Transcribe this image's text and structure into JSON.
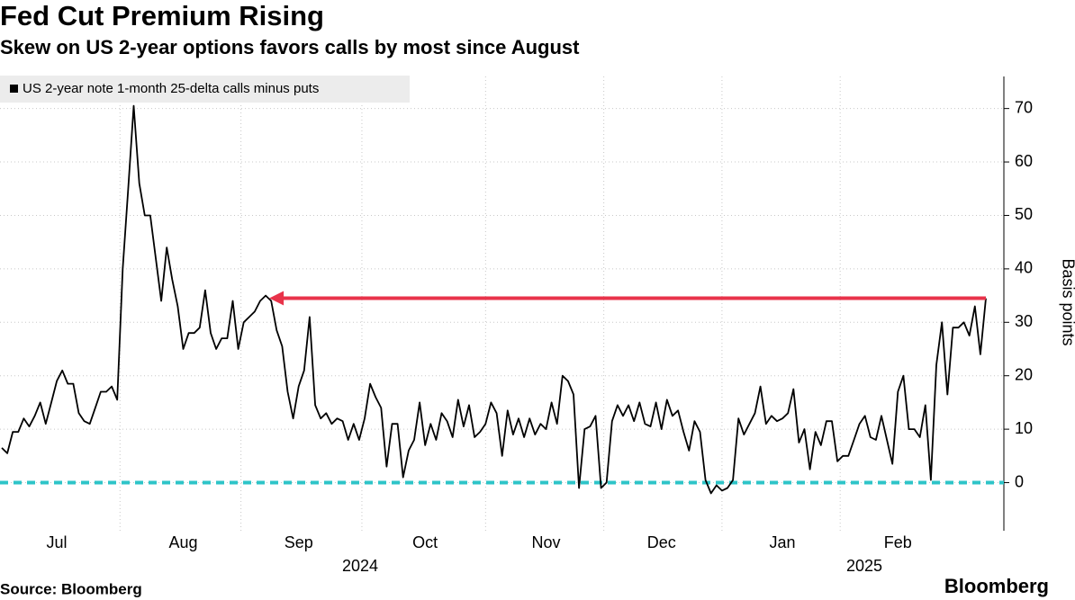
{
  "chart_data": {
    "type": "line",
    "title": "Fed Cut Premium Rising",
    "subtitle": "Skew on US 2-year options favors calls by most since August",
    "y_label": "Basis points",
    "source": "Source: Bloomberg",
    "brand": "Bloomberg",
    "categories": [
      null,
      null,
      null,
      null,
      null,
      null,
      null,
      null,
      null,
      null,
      "Jul",
      null,
      null,
      null,
      null,
      null,
      null,
      null,
      null,
      null,
      null,
      null,
      null,
      null,
      null,
      null,
      null,
      null,
      null,
      null,
      null,
      null,
      null,
      "Aug",
      null,
      null,
      null,
      null,
      null,
      null,
      null,
      null,
      null,
      null,
      null,
      null,
      null,
      null,
      null,
      null,
      null,
      null,
      null,
      null,
      "Sep",
      null,
      null,
      null,
      null,
      null,
      null,
      null,
      null,
      null,
      null,
      null,
      null,
      null,
      null,
      null,
      null,
      null,
      null,
      null,
      null,
      null,
      null,
      "Oct",
      null,
      null,
      null,
      null,
      null,
      null,
      null,
      null,
      null,
      null,
      null,
      null,
      null,
      null,
      null,
      null,
      null,
      null,
      null,
      null,
      null,
      "Nov",
      null,
      null,
      null,
      null,
      null,
      null,
      null,
      null,
      null,
      null,
      null,
      null,
      null,
      null,
      null,
      null,
      null,
      null,
      null,
      null,
      "Dec",
      null,
      null,
      null,
      null,
      null,
      null,
      null,
      null,
      null,
      null,
      null,
      null,
      null,
      null,
      null,
      null,
      null,
      null,
      null,
      null,
      null,
      "Jan",
      null,
      null,
      null,
      null,
      null,
      null,
      null,
      null,
      null,
      null,
      null,
      null,
      null,
      null,
      null,
      null,
      null,
      null,
      null,
      null,
      "Feb",
      null,
      null,
      null,
      null,
      null,
      null,
      null,
      null,
      null,
      null,
      null,
      null,
      null,
      null,
      null,
      null
    ],
    "year_labels": [
      "2024",
      "2025"
    ],
    "series": [
      {
        "name": "US 2-year note 1-month 25-delta calls minus puts",
        "color": "#000000",
        "values": [
          6.5,
          5.5,
          9.5,
          9.5,
          12,
          10.5,
          12.5,
          15,
          11,
          15,
          19,
          21,
          18.5,
          18.5,
          13,
          11.5,
          11,
          14,
          17,
          17,
          18,
          15.5,
          40,
          55,
          70.5,
          56,
          50,
          50,
          42,
          34,
          44,
          38,
          33,
          25,
          28,
          28,
          29,
          36,
          28,
          25,
          27,
          27,
          34,
          25,
          30,
          31,
          32,
          34,
          35,
          34,
          28.5,
          25.5,
          17,
          12,
          18,
          21,
          31,
          14.5,
          12,
          13,
          11,
          12,
          11.5,
          8,
          11,
          8,
          12,
          18.5,
          16,
          14,
          3,
          11,
          11,
          1,
          6,
          8,
          15,
          7,
          11,
          8,
          13,
          11.5,
          8.5,
          15.5,
          10.5,
          14.5,
          8.5,
          9.5,
          11,
          15,
          13,
          5,
          13.5,
          9,
          12,
          8.5,
          12,
          9,
          11,
          10,
          15,
          11,
          20,
          19,
          16.5,
          -1,
          10,
          10.5,
          12.5,
          -1,
          0,
          11.5,
          14.5,
          12.5,
          14.5,
          11.5,
          15,
          11,
          10.5,
          15,
          10,
          15.5,
          12.5,
          13.5,
          9.5,
          6,
          11.5,
          9.5,
          0.5,
          -2,
          -0.5,
          -1.5,
          -1,
          0.5,
          12,
          9,
          11,
          13,
          18,
          11,
          12.5,
          11.5,
          12,
          13,
          17.5,
          7.5,
          10,
          2.5,
          9.5,
          7,
          11.5,
          11.5,
          4,
          5,
          5,
          8,
          11,
          12.5,
          8.5,
          8,
          12.5,
          8,
          3.5,
          17,
          20,
          10,
          10,
          8.5,
          14.5,
          0.5,
          22,
          30,
          16.5,
          29,
          29,
          30,
          27.5,
          33,
          24,
          34.5
        ]
      }
    ],
    "reference_line": {
      "value": 0,
      "color": "#2ec4c8"
    },
    "arrow": {
      "value": 34.5,
      "color": "#e8334a"
    },
    "ylim": [
      -9,
      76
    ],
    "yticks": [
      0,
      10,
      20,
      30,
      40,
      50,
      60,
      70
    ],
    "grid": true,
    "legend_position": "top-left"
  }
}
